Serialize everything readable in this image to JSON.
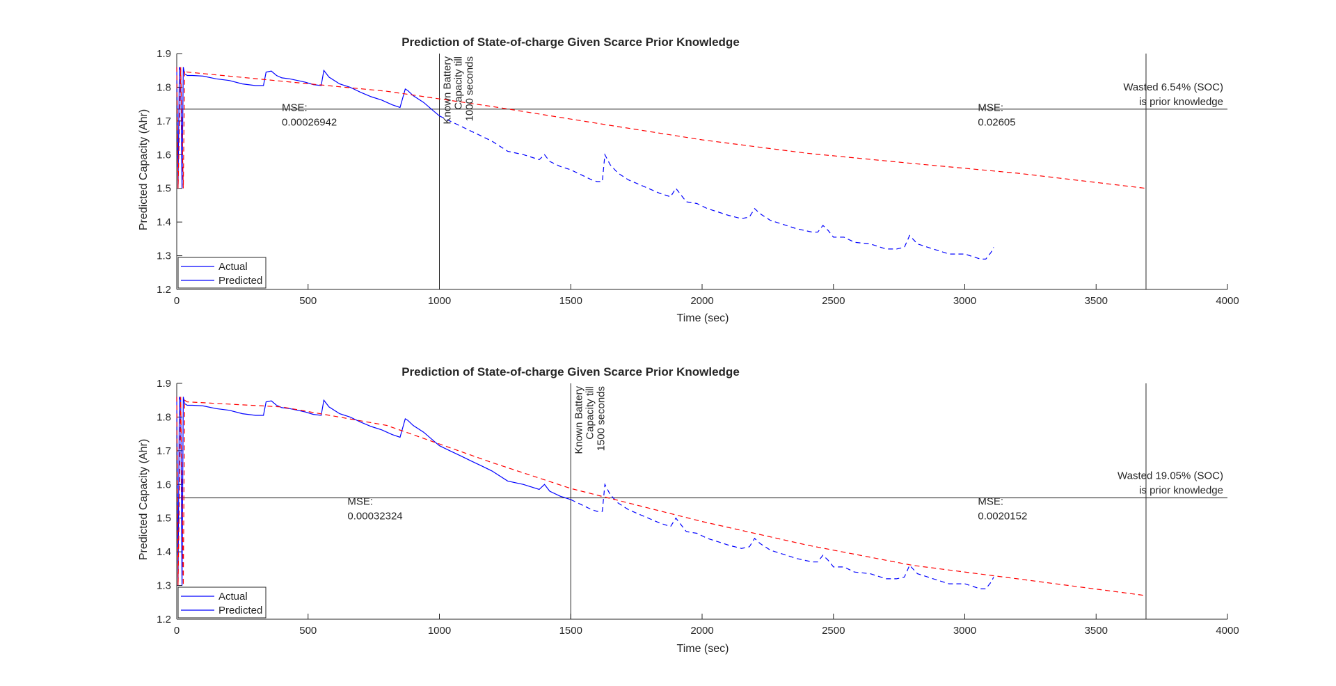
{
  "chart_data": [
    {
      "type": "line",
      "title": "Prediction of State-of-charge Given Scarce Prior Knowledge",
      "xlabel": "Time (sec)",
      "ylabel": "Predicted Capacity (Ahr)",
      "xlim": [
        0,
        4000
      ],
      "ylim": [
        1.2,
        1.9
      ],
      "xticks": [
        "0",
        "500",
        "1000",
        "1500",
        "2000",
        "2500",
        "3000",
        "3500",
        "4000"
      ],
      "yticks": [
        "1.2",
        "1.3",
        "1.4",
        "1.5",
        "1.6",
        "1.7",
        "1.8",
        "1.9"
      ],
      "grid": false,
      "legend": {
        "placement": "bottom-left",
        "entries": [
          "Actual",
          "Predicted"
        ]
      },
      "known_until": 1000,
      "known_label": [
        "Known Battery",
        "Capacity till",
        "1000 seconds"
      ],
      "wasted_y": 1.735,
      "end_x": 3690,
      "wasted_text": [
        "Wasted 6.54% (SOC)",
        "is prior knowledge"
      ],
      "mse_left": [
        "MSE:",
        "0.00026942"
      ],
      "mse_left_at": [
        400,
        1.73
      ],
      "mse_right": [
        "MSE:",
        "0.02605"
      ],
      "mse_right_at": [
        3050,
        1.73
      ],
      "series": [
        {
          "name": "Actual",
          "x": [
            0,
            5,
            10,
            15,
            20,
            25,
            30,
            40,
            60,
            100,
            150,
            200,
            250,
            300,
            330,
            340,
            360,
            380,
            400,
            430,
            460,
            490,
            520,
            550,
            560,
            580,
            620,
            660,
            700,
            740,
            780,
            820,
            850,
            870,
            880,
            900,
            940,
            980,
            1000,
            1040,
            1080,
            1120,
            1160,
            1200,
            1260,
            1320,
            1380,
            1400,
            1420,
            1460,
            1500,
            1540,
            1580,
            1600,
            1620,
            1630,
            1650,
            1680,
            1720,
            1780,
            1840,
            1880,
            1900,
            1940,
            1980,
            2020,
            2060,
            2100,
            2150,
            2180,
            2200,
            2220,
            2260,
            2300,
            2360,
            2420,
            2440,
            2460,
            2480,
            2500,
            2540,
            2580,
            2640,
            2700,
            2740,
            2770,
            2790,
            2820,
            2880,
            2940,
            3000,
            3060,
            3080,
            3100,
            3110
          ],
          "y": [
            1.86,
            1.5,
            1.86,
            1.85,
            1.5,
            1.86,
            1.84,
            1.835,
            1.835,
            1.833,
            1.825,
            1.82,
            1.81,
            1.805,
            1.805,
            1.845,
            1.848,
            1.835,
            1.828,
            1.825,
            1.82,
            1.815,
            1.808,
            1.805,
            1.85,
            1.83,
            1.81,
            1.8,
            1.785,
            1.772,
            1.762,
            1.748,
            1.74,
            1.795,
            1.79,
            1.775,
            1.755,
            1.728,
            1.715,
            1.7,
            1.685,
            1.67,
            1.655,
            1.64,
            1.61,
            1.6,
            1.585,
            1.6,
            1.58,
            1.565,
            1.555,
            1.54,
            1.525,
            1.52,
            1.52,
            1.6,
            1.57,
            1.545,
            1.525,
            1.505,
            1.485,
            1.475,
            1.5,
            1.46,
            1.455,
            1.44,
            1.43,
            1.42,
            1.41,
            1.415,
            1.44,
            1.425,
            1.405,
            1.395,
            1.38,
            1.37,
            1.37,
            1.39,
            1.375,
            1.355,
            1.355,
            1.34,
            1.335,
            1.32,
            1.32,
            1.325,
            1.36,
            1.335,
            1.32,
            1.305,
            1.305,
            1.29,
            1.29,
            1.31,
            1.325
          ],
          "solid_until": 1000
        },
        {
          "name": "Predicted",
          "x": [
            0,
            5,
            15,
            25,
            30,
            40,
            400,
            800,
            1200,
            1600,
            2000,
            2400,
            2800,
            3200,
            3690
          ],
          "y": [
            1.86,
            1.5,
            1.86,
            1.5,
            1.85,
            1.845,
            1.818,
            1.788,
            1.743,
            1.693,
            1.644,
            1.604,
            1.574,
            1.545,
            1.5
          ]
        }
      ]
    },
    {
      "type": "line",
      "title": "Prediction of State-of-charge Given Scarce Prior Knowledge",
      "xlabel": "Time (sec)",
      "ylabel": "Predicted Capacity (Ahr)",
      "xlim": [
        0,
        4000
      ],
      "ylim": [
        1.2,
        1.9
      ],
      "xticks": [
        "0",
        "500",
        "1000",
        "1500",
        "2000",
        "2500",
        "3000",
        "3500",
        "4000"
      ],
      "yticks": [
        "1.2",
        "1.3",
        "1.4",
        "1.5",
        "1.6",
        "1.7",
        "1.8",
        "1.9"
      ],
      "grid": false,
      "legend": {
        "placement": "bottom-left",
        "entries": [
          "Actual",
          "Predicted"
        ]
      },
      "known_until": 1500,
      "known_label": [
        "Known Battery",
        "Capacity till",
        "1500 seconds"
      ],
      "wasted_y": 1.56,
      "end_x": 3690,
      "wasted_text": [
        "Wasted 19.05% (SOC)",
        "is prior knowledge"
      ],
      "mse_left": [
        "MSE:",
        "0.00032324"
      ],
      "mse_left_at": [
        650,
        1.54
      ],
      "mse_right": [
        "MSE:",
        "0.0020152"
      ],
      "mse_right_at": [
        3050,
        1.54
      ],
      "series": [
        {
          "name": "Actual",
          "x": [
            0,
            5,
            10,
            15,
            20,
            25,
            30,
            40,
            60,
            100,
            150,
            200,
            250,
            300,
            330,
            340,
            360,
            380,
            400,
            430,
            460,
            490,
            520,
            550,
            560,
            580,
            620,
            660,
            700,
            740,
            780,
            820,
            850,
            870,
            880,
            900,
            940,
            980,
            1000,
            1040,
            1080,
            1120,
            1160,
            1200,
            1260,
            1320,
            1380,
            1400,
            1420,
            1460,
            1500,
            1540,
            1580,
            1600,
            1620,
            1630,
            1650,
            1680,
            1720,
            1780,
            1840,
            1880,
            1900,
            1940,
            1980,
            2020,
            2060,
            2100,
            2150,
            2180,
            2200,
            2220,
            2260,
            2300,
            2360,
            2420,
            2440,
            2460,
            2480,
            2500,
            2540,
            2580,
            2640,
            2700,
            2740,
            2770,
            2790,
            2820,
            2880,
            2940,
            3000,
            3060,
            3080,
            3100,
            3110
          ],
          "y": [
            1.86,
            1.3,
            1.86,
            1.85,
            1.3,
            1.86,
            1.84,
            1.835,
            1.835,
            1.833,
            1.825,
            1.82,
            1.81,
            1.805,
            1.805,
            1.845,
            1.848,
            1.835,
            1.828,
            1.825,
            1.82,
            1.815,
            1.808,
            1.805,
            1.85,
            1.83,
            1.81,
            1.8,
            1.785,
            1.772,
            1.762,
            1.748,
            1.74,
            1.795,
            1.79,
            1.775,
            1.755,
            1.728,
            1.715,
            1.7,
            1.685,
            1.67,
            1.655,
            1.64,
            1.61,
            1.6,
            1.585,
            1.6,
            1.58,
            1.565,
            1.555,
            1.54,
            1.525,
            1.52,
            1.52,
            1.6,
            1.57,
            1.545,
            1.525,
            1.505,
            1.485,
            1.475,
            1.5,
            1.46,
            1.455,
            1.44,
            1.43,
            1.42,
            1.41,
            1.415,
            1.44,
            1.425,
            1.405,
            1.395,
            1.38,
            1.37,
            1.37,
            1.39,
            1.375,
            1.355,
            1.355,
            1.34,
            1.335,
            1.32,
            1.32,
            1.325,
            1.36,
            1.335,
            1.32,
            1.305,
            1.305,
            1.29,
            1.29,
            1.31,
            1.325
          ],
          "solid_until": 1500
        },
        {
          "name": "Predicted",
          "x": [
            0,
            5,
            15,
            25,
            30,
            40,
            400,
            800,
            1200,
            1500,
            2000,
            2400,
            2800,
            3200,
            3690
          ],
          "y": [
            1.86,
            1.3,
            1.86,
            1.3,
            1.85,
            1.845,
            1.83,
            1.775,
            1.665,
            1.588,
            1.49,
            1.42,
            1.36,
            1.32,
            1.27
          ]
        }
      ]
    }
  ]
}
